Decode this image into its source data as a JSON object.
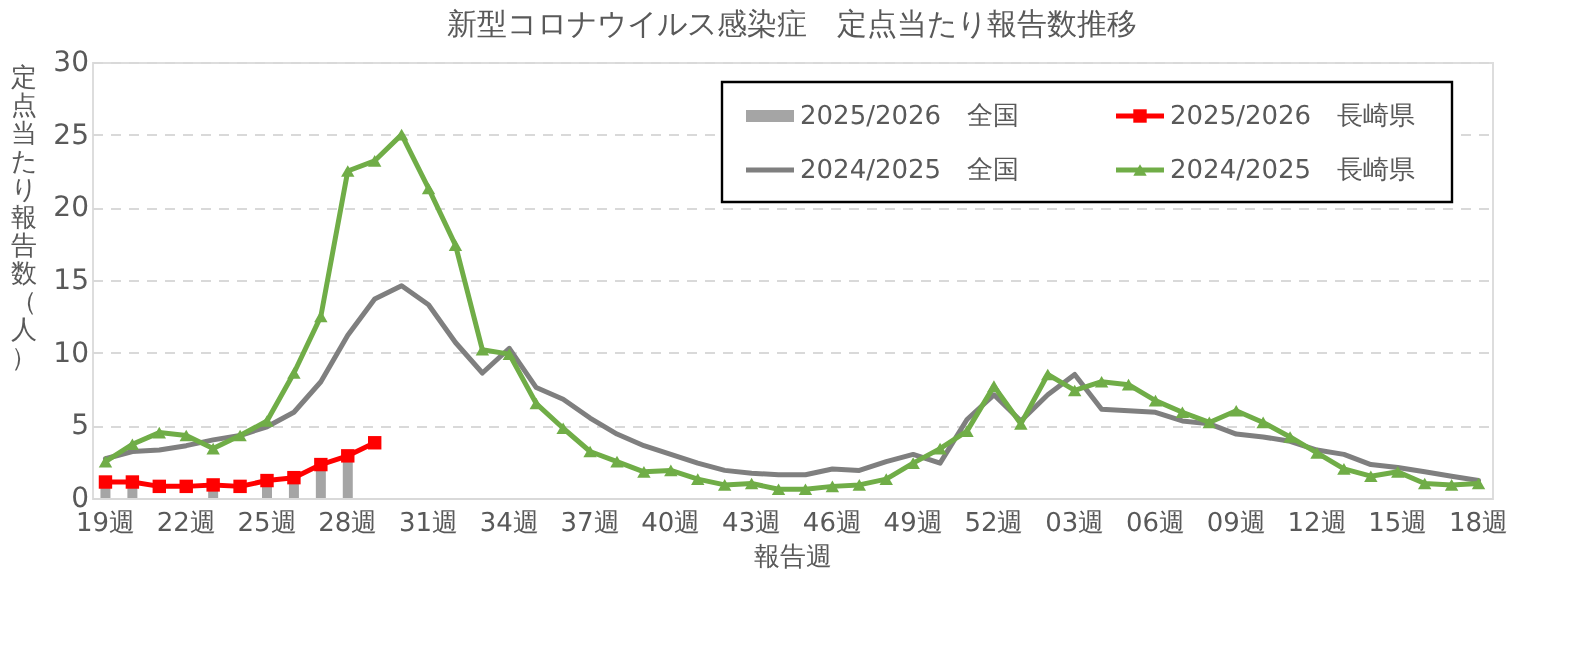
{
  "chart_data": {
    "type": "line",
    "title": "新型コロナウイルス感染症　定点当たり報告数推移",
    "xlabel": "報告週",
    "ylabel": "定点当たり報告数（人）",
    "categories": [
      "19週",
      null,
      null,
      "22週",
      null,
      null,
      "25週",
      null,
      null,
      "28週",
      null,
      null,
      "31週",
      null,
      null,
      "34週",
      null,
      null,
      "37週",
      null,
      null,
      "40週",
      null,
      null,
      "43週",
      null,
      null,
      "46週",
      null,
      null,
      "49週",
      null,
      null,
      "52週",
      null,
      null,
      "03週",
      null,
      null,
      "06週",
      null,
      null,
      "09週",
      null,
      null,
      "12週",
      null,
      null,
      "15週",
      null,
      null,
      "18週"
    ],
    "ylim": [
      0,
      30
    ],
    "yticks": [
      0,
      5,
      10,
      15,
      20,
      25,
      30
    ],
    "grid": "y",
    "legend": "top right",
    "line_style": "solid",
    "series": [
      {
        "name": "2025/2026　全国",
        "type": "bar",
        "color": "#a5a5a5",
        "values": [
          0.9,
          0.9,
          null,
          null,
          0.8,
          null,
          1.0,
          1.2,
          2.2,
          2.7,
          null,
          null,
          null,
          null,
          null,
          null,
          null,
          null,
          null,
          null,
          null,
          null,
          null,
          null,
          null,
          null,
          null,
          null,
          null,
          null,
          null,
          null,
          null,
          null,
          null,
          null,
          null,
          null,
          null,
          null,
          null,
          null,
          null,
          null,
          null,
          null,
          null,
          null,
          null,
          null,
          null,
          null
        ]
      },
      {
        "name": "2025/2026　長崎県",
        "color": "#ff0000",
        "marker": "square",
        "values": [
          1.1,
          1.1,
          0.8,
          0.8,
          0.9,
          0.8,
          1.2,
          1.4,
          2.3,
          2.9,
          3.8,
          null,
          null,
          null,
          null,
          null,
          null,
          null,
          null,
          null,
          null,
          null,
          null,
          null,
          null,
          null,
          null,
          null,
          null,
          null,
          null,
          null,
          null,
          null,
          null,
          null,
          null,
          null,
          null,
          null,
          null,
          null,
          null,
          null,
          null,
          null,
          null,
          null,
          null,
          null,
          null,
          null
        ]
      },
      {
        "name": "2024/2025　全国",
        "color": "#7f7f7f",
        "marker": "none",
        "values": [
          2.7,
          3.2,
          3.3,
          3.6,
          4.0,
          4.3,
          4.9,
          5.9,
          8.0,
          11.2,
          13.7,
          14.6,
          13.3,
          10.7,
          8.6,
          10.3,
          7.6,
          6.8,
          5.5,
          4.4,
          3.6,
          3.0,
          2.4,
          1.9,
          1.7,
          1.6,
          1.6,
          2.0,
          1.9,
          2.5,
          3.0,
          2.4,
          5.4,
          7.1,
          5.3,
          7.1,
          8.5,
          6.1,
          6.0,
          5.9,
          5.3,
          5.1,
          4.4,
          4.2,
          3.9,
          3.3,
          3.0,
          2.3,
          2.1,
          1.8,
          1.5,
          1.2
        ]
      },
      {
        "name": "2024/2025　長崎県",
        "color": "#70ad47",
        "marker": "triangle",
        "values": [
          2.5,
          3.7,
          4.5,
          4.3,
          3.4,
          4.3,
          5.3,
          8.6,
          12.5,
          22.5,
          23.2,
          25.0,
          21.3,
          17.4,
          10.2,
          9.9,
          6.5,
          4.8,
          3.2,
          2.5,
          1.8,
          1.9,
          1.3,
          0.9,
          1.0,
          0.6,
          0.6,
          0.8,
          0.9,
          1.3,
          2.4,
          3.4,
          4.6,
          7.7,
          5.1,
          8.5,
          7.4,
          8.0,
          7.8,
          6.7,
          5.9,
          5.2,
          6.0,
          5.2,
          4.2,
          3.1,
          2.0,
          1.5,
          1.8,
          1.0,
          0.9,
          1.0
        ]
      }
    ]
  }
}
